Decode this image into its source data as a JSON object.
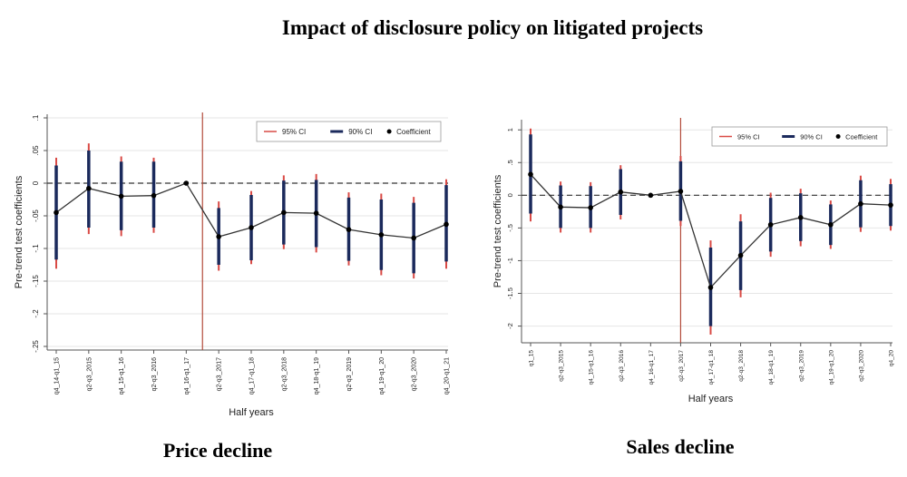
{
  "title": "Impact of disclosure policy on litigated projects",
  "colors": {
    "ci95": "#d94a45",
    "ci90": "#1b2a5c",
    "coef": "#000000",
    "zero_line": "#333333",
    "event_line": "#b24a3a",
    "grid": "#e6e6e6",
    "axis": "#555555"
  },
  "chart_data": [
    {
      "id": "price",
      "type": "line",
      "subtitle": "Price decline",
      "xlabel": "Half years",
      "ylabel": "Pre-trend test coefficients",
      "ylim": [
        -0.25,
        0.1
      ],
      "yticks": [
        0.1,
        0.05,
        0,
        -0.05,
        -0.1,
        -0.15,
        -0.2,
        -0.25
      ],
      "ytick_labels": [
        ".1",
        ".05",
        "0",
        "-.05",
        "-.1",
        "-.15",
        "-.2",
        "-.25"
      ],
      "categories": [
        "q4_14-q1_15",
        "q2-q3_2015",
        "q4_15-q1_16",
        "q2-q3_2016",
        "q4_16-q1_17",
        "q2-q3_2017",
        "q4_17-q1_18",
        "q2-q3_2018",
        "q4_18-q1_19",
        "q2-q3_2019",
        "q4_19-q1_20",
        "q2-q3_2020",
        "q4_20-q1_21"
      ],
      "coefficients": [
        -0.045,
        -0.008,
        -0.02,
        -0.019,
        0.0,
        -0.082,
        -0.068,
        -0.045,
        -0.046,
        -0.071,
        -0.079,
        -0.084,
        -0.063
      ],
      "ci95": [
        [
          -0.131,
          0.039
        ],
        [
          -0.078,
          0.061
        ],
        [
          -0.081,
          0.041
        ],
        [
          -0.076,
          0.039
        ],
        null,
        [
          -0.134,
          -0.028
        ],
        [
          -0.124,
          -0.012
        ],
        [
          -0.101,
          0.012
        ],
        [
          -0.106,
          0.014
        ],
        [
          -0.126,
          -0.014
        ],
        [
          -0.141,
          -0.016
        ],
        [
          -0.146,
          -0.021
        ],
        [
          -0.131,
          0.006
        ]
      ],
      "ci90": [
        [
          -0.117,
          0.027
        ],
        [
          -0.068,
          0.05
        ],
        [
          -0.072,
          0.033
        ],
        [
          -0.068,
          0.033
        ],
        null,
        [
          -0.125,
          -0.038
        ],
        [
          -0.118,
          -0.018
        ],
        [
          -0.094,
          0.004
        ],
        [
          -0.098,
          0.005
        ],
        [
          -0.119,
          -0.022
        ],
        [
          -0.133,
          -0.025
        ],
        [
          -0.138,
          -0.03
        ],
        [
          -0.12,
          -0.003
        ]
      ],
      "event_after_index": 4,
      "legend": {
        "ci95": "95% CI",
        "ci90": "90% CI",
        "coef": "Coefficient",
        "position": "top-right"
      }
    },
    {
      "id": "sales",
      "type": "line",
      "subtitle": "Sales decline",
      "xlabel": "Half years",
      "ylabel": "Pre-trend test coefficients",
      "ylim": [
        -2.2,
        1.1
      ],
      "yticks": [
        1,
        0.5,
        0,
        -0.5,
        -1,
        -1.5,
        -2
      ],
      "ytick_labels": [
        "1",
        ".5",
        "0",
        "-.5",
        "-1",
        "-1.5",
        "-2"
      ],
      "categories": [
        "q1_15",
        "q2-q3_2015",
        "q4_15-q1_16",
        "q2-q3_2016",
        "q4_16-q1_17",
        "q2-q3_2017",
        "q4_17-q1_18",
        "q2-q3_2018",
        "q4_18-q1_19",
        "q2-q3_2019",
        "q4_19-q1_20",
        "q2-q3_2020",
        "q4_20"
      ],
      "coefficients": [
        0.32,
        -0.18,
        -0.19,
        0.05,
        0.0,
        0.06,
        -1.41,
        -0.92,
        -0.45,
        -0.34,
        -0.45,
        -0.13,
        -0.15
      ],
      "ci95": [
        [
          -0.4,
          1.02
        ],
        [
          -0.57,
          0.21
        ],
        [
          -0.57,
          0.2
        ],
        [
          -0.37,
          0.46
        ],
        null,
        [
          -0.47,
          0.6
        ],
        [
          -2.13,
          -0.69
        ],
        [
          -1.56,
          -0.29
        ],
        [
          -0.94,
          0.04
        ],
        [
          -0.78,
          0.1
        ],
        [
          -0.82,
          -0.08
        ],
        [
          -0.56,
          0.3
        ],
        [
          -0.54,
          0.25
        ]
      ],
      "ci90": [
        [
          -0.28,
          0.93
        ],
        [
          -0.5,
          0.15
        ],
        [
          -0.5,
          0.14
        ],
        [
          -0.3,
          0.4
        ],
        null,
        [
          -0.39,
          0.52
        ],
        [
          -2.0,
          -0.8
        ],
        [
          -1.45,
          -0.4
        ],
        [
          -0.86,
          -0.04
        ],
        [
          -0.7,
          0.03
        ],
        [
          -0.76,
          -0.14
        ],
        [
          -0.49,
          0.23
        ],
        [
          -0.47,
          0.17
        ]
      ],
      "event_after_index": 4.5,
      "legend": {
        "ci95": "95% CI",
        "ci90": "90% CI",
        "coef": "Coefficient",
        "position": "top-right"
      }
    }
  ]
}
